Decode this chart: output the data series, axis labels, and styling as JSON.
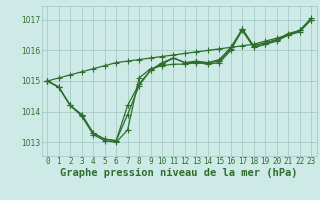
{
  "bg_color": "#ceeae6",
  "grid_color": "#a8ccc8",
  "line_color": "#2d6e2d",
  "marker_color": "#2d6e2d",
  "title": "Graphe pression niveau de la mer (hPa)",
  "yticks": [
    1013,
    1014,
    1015,
    1016,
    1017
  ],
  "ylim": [
    1012.55,
    1017.45
  ],
  "xlim": [
    -0.5,
    23.5
  ],
  "series": [
    [
      1015.0,
      1014.8,
      1014.2,
      1013.9,
      1013.3,
      1013.1,
      1013.05,
      1013.9,
      1014.85,
      1015.35,
      1015.55,
      1015.75,
      1015.6,
      1015.6,
      1015.6,
      1015.65,
      1016.05,
      1016.65,
      1016.1,
      1016.2,
      1016.35,
      1016.5,
      1016.65,
      1017.0
    ],
    [
      1015.0,
      1014.8,
      1014.2,
      1013.9,
      1013.3,
      1013.1,
      1013.05,
      1014.2,
      1014.9,
      1015.35,
      1015.6,
      1015.75,
      1015.6,
      1015.65,
      1015.6,
      1015.7,
      1016.1,
      1016.7,
      1016.15,
      1016.25,
      1016.35,
      1016.55,
      1016.65,
      1017.05
    ],
    [
      1015.0,
      1014.8,
      1014.2,
      1013.85,
      1013.25,
      1013.05,
      1013.0,
      1013.4,
      1015.1,
      1015.4,
      1015.5,
      1015.55,
      1015.55,
      1015.6,
      1015.55,
      1015.6,
      1016.0,
      1016.7,
      1016.1,
      1016.2,
      1016.3,
      1016.5,
      1016.6,
      1017.0
    ],
    [
      1015.0,
      1015.1,
      1015.2,
      1015.3,
      1015.4,
      1015.5,
      1015.6,
      1015.65,
      1015.7,
      1015.75,
      1015.8,
      1015.85,
      1015.9,
      1015.95,
      1016.0,
      1016.05,
      1016.1,
      1016.15,
      1016.2,
      1016.3,
      1016.4,
      1016.5,
      1016.65,
      1017.0
    ]
  ],
  "marker_size": 2.5,
  "linewidth": 0.9,
  "title_fontsize": 7.5,
  "tick_fontsize": 5.5,
  "fig_width": 3.2,
  "fig_height": 2.0,
  "dpi": 100
}
